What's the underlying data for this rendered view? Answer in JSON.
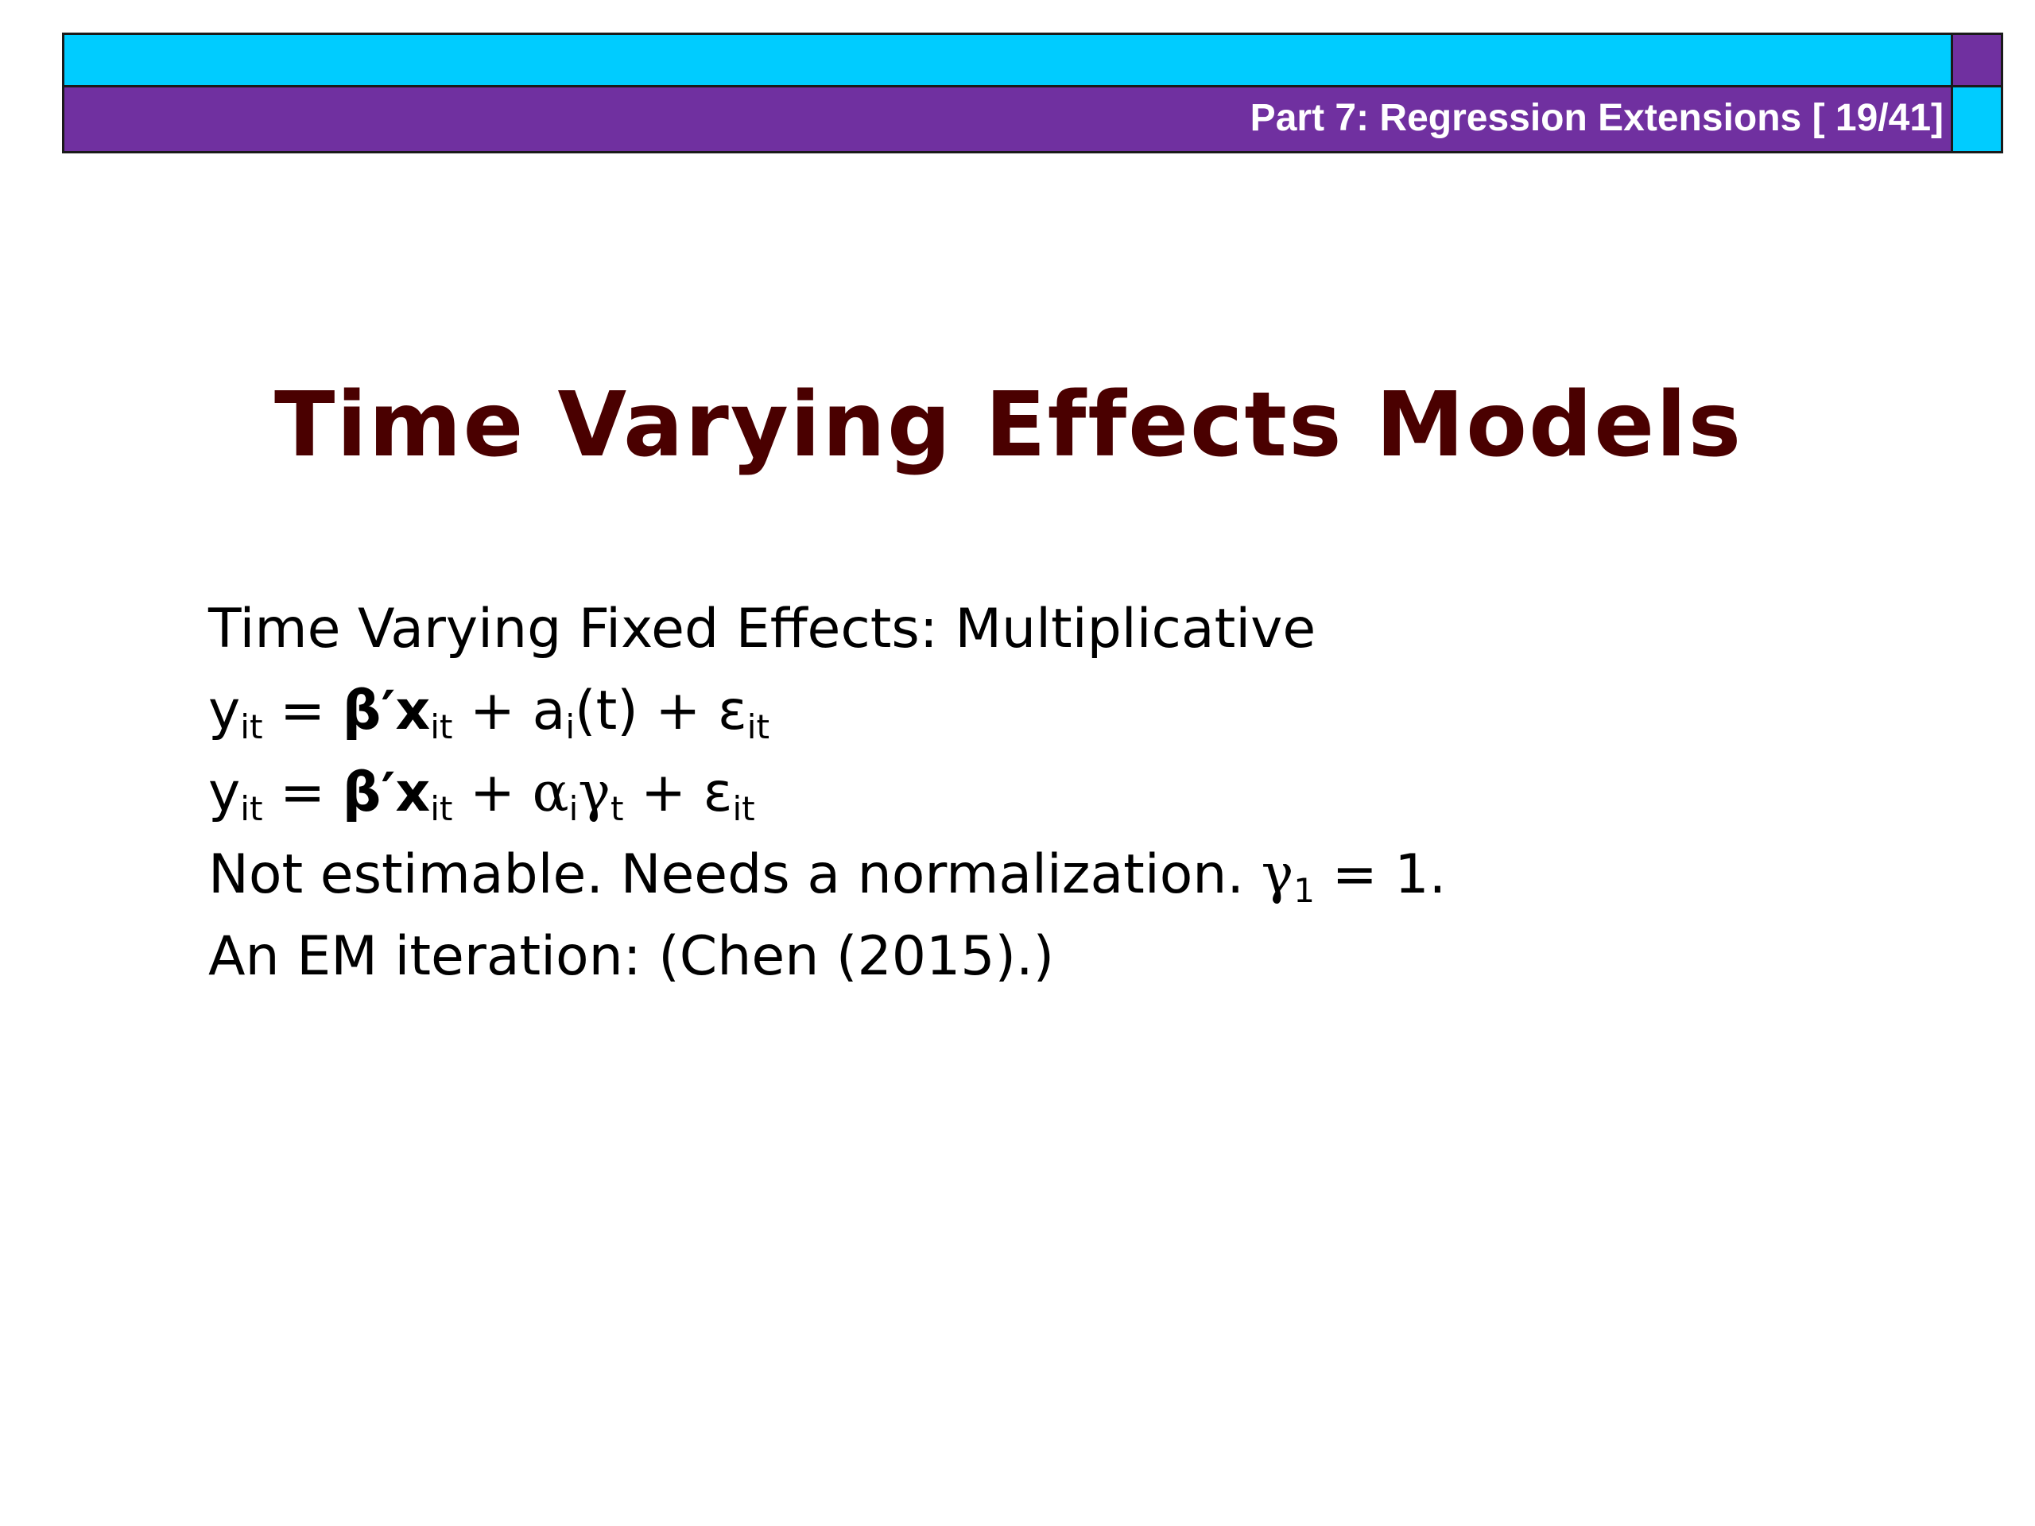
{
  "header": {
    "part_label": "Part 7: Regression Extensions [ 19/41]",
    "colors": {
      "cyan": "#00ccff",
      "purple": "#7030a0"
    }
  },
  "slide": {
    "title": "Time Varying Effects Models",
    "title_color": "#4a0000",
    "line1": "Time Varying Fixed Effects:  Multiplicative",
    "eq1": {
      "y": "y",
      "y_sub": "it",
      "eq": " = ",
      "beta": "β′x",
      "beta_sub": "it",
      "plus1": " + a",
      "a_sub": "i",
      "t_part": "(t) + ε",
      "eps_sub": "it"
    },
    "eq2": {
      "y": "y",
      "y_sub": "it",
      "eq": " = ",
      "beta": "β′x",
      "beta_sub": "it",
      "plus1": " + ",
      "alpha": "α",
      "alpha_sub": "i",
      "gamma": "γ",
      "gamma_sub": "t",
      "plus2": " + ε",
      "eps_sub": "it"
    },
    "line4": {
      "text": "Not estimable.  Needs a normalization. ",
      "gamma": "γ",
      "gamma_sub": "1",
      "tail": " = 1."
    },
    "line5": "An EM iteration:  (Chen (2015).)"
  }
}
